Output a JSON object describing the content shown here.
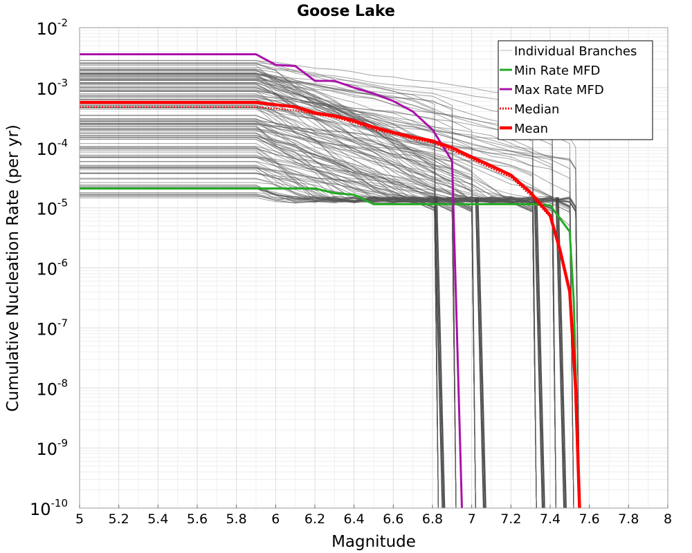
{
  "chart_data": {
    "type": "line",
    "title": "Goose Lake",
    "xlabel": "Magnitude",
    "ylabel": "Cumulative Nucleation Rate (per yr)",
    "xlim": [
      5,
      8
    ],
    "ylim": [
      1e-10,
      0.01
    ],
    "yscale": "log",
    "grid": true,
    "legend_position": "top-right",
    "x_ticks": [
      "5",
      "5.2",
      "5.4",
      "5.6",
      "5.8",
      "6",
      "6.2",
      "6.4",
      "6.6",
      "6.8",
      "7",
      "7.2",
      "7.4",
      "7.6",
      "7.8",
      "8"
    ],
    "y_tick_base": "10",
    "y_tick_exponents": [
      "-10",
      "-9",
      "-8",
      "-7",
      "-6",
      "-5",
      "-4",
      "-3",
      "-2"
    ],
    "series": [
      {
        "name": "Individual Branches",
        "color": "#555555",
        "style": "thin",
        "description_range": {
          "y_low_at_M5": 1.3e-05,
          "y_high_at_M5": 0.003
        },
        "x": [
          5.0,
          5.9,
          6.0,
          6.2,
          6.4,
          6.6,
          6.8,
          7.0,
          7.2,
          7.4,
          7.5
        ],
        "values": [
          0.0002,
          0.0002,
          0.00018,
          0.00012,
          7e-05,
          5e-05,
          3e-05,
          2e-05,
          1.5e-05,
          1e-05,
          5e-06
        ]
      },
      {
        "name": "Min Rate MFD",
        "color": "#22aa22",
        "style": "solid",
        "x": [
          5.0,
          6.2,
          6.3,
          6.4,
          6.5,
          6.7,
          7.0,
          7.2,
          7.3,
          7.4,
          7.5,
          7.52,
          7.55
        ],
        "values": [
          2.1e-05,
          2.1e-05,
          1.75e-05,
          1.65e-05,
          1.15e-05,
          1.15e-05,
          1.15e-05,
          1.15e-05,
          1.15e-05,
          1.1e-05,
          4e-06,
          3e-07,
          1e-10
        ]
      },
      {
        "name": "Max Rate MFD",
        "color": "#aa11aa",
        "style": "solid",
        "x": [
          5.0,
          5.9,
          6.0,
          6.1,
          6.2,
          6.3,
          6.4,
          6.5,
          6.6,
          6.7,
          6.8,
          6.85,
          6.9,
          6.95
        ],
        "values": [
          0.0036,
          0.0036,
          0.0024,
          0.0023,
          0.0013,
          0.0013,
          0.001,
          0.0008,
          0.0006,
          0.0004,
          0.0002,
          0.00011,
          6e-05,
          1e-10
        ]
      },
      {
        "name": "Median",
        "color": "#ff0000",
        "style": "dotted",
        "x": [
          5.0,
          5.9,
          6.0,
          6.1,
          6.2,
          6.3,
          6.4,
          6.5,
          6.6,
          6.7,
          6.8,
          6.9,
          7.0,
          7.1,
          7.2,
          7.3,
          7.4,
          7.45,
          7.5,
          7.53,
          7.55
        ],
        "values": [
          0.00048,
          0.00048,
          0.00045,
          0.00042,
          0.00036,
          0.00032,
          0.00026,
          0.0002,
          0.00017,
          0.00014,
          0.00012,
          9e-05,
          6.5e-05,
          4.5e-05,
          3.2e-05,
          1.6e-05,
          7e-06,
          2e-06,
          3.5e-07,
          1e-08,
          1e-10
        ]
      },
      {
        "name": "Mean",
        "color": "#ff0000",
        "style": "thick",
        "x": [
          5.0,
          5.9,
          6.0,
          6.1,
          6.2,
          6.3,
          6.4,
          6.5,
          6.6,
          6.7,
          6.8,
          6.9,
          7.0,
          7.1,
          7.2,
          7.3,
          7.4,
          7.45,
          7.5,
          7.53,
          7.55
        ],
        "values": [
          0.00057,
          0.00057,
          0.00052,
          0.00048,
          0.00038,
          0.00034,
          0.00028,
          0.00022,
          0.00018,
          0.00015,
          0.00013,
          0.0001,
          7e-05,
          5e-05,
          3.5e-05,
          1.8e-05,
          7.5e-06,
          2e-06,
          4e-07,
          1e-08,
          1e-10
        ]
      }
    ]
  }
}
